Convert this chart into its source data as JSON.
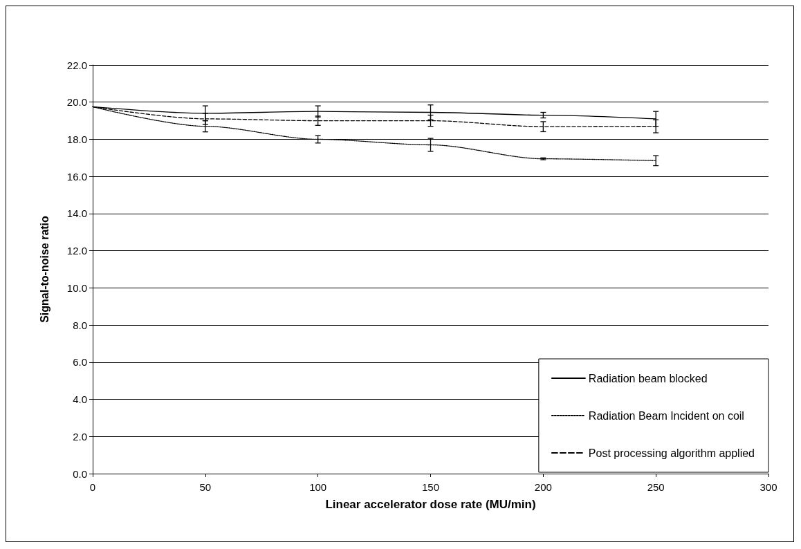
{
  "chart_data": {
    "type": "line",
    "xlabel": "Linear accelerator dose rate (MU/min)",
    "ylabel": "Signal-to-noise ratio",
    "x": [
      0,
      50,
      100,
      150,
      200,
      250
    ],
    "series": [
      {
        "name": "Radiation beam blocked",
        "color": "#000000",
        "line_style": "solid",
        "values": [
          19.75,
          19.4,
          19.5,
          19.45,
          19.3,
          19.1
        ],
        "errors": [
          null,
          0.4,
          0.3,
          0.4,
          0.15,
          0.4
        ]
      },
      {
        "name": "Radiation Beam Incident on coil",
        "color": "#000000",
        "line_style": "dotted",
        "values": [
          19.75,
          18.7,
          18.0,
          17.7,
          16.95,
          16.85
        ],
        "errors": [
          null,
          0.3,
          0.2,
          0.35,
          0.05,
          0.27
        ]
      },
      {
        "name": "Post processing algorithm applied",
        "color": "#000000",
        "line_style": "dashed",
        "values": [
          19.75,
          19.1,
          19.0,
          19.0,
          18.68,
          18.7
        ],
        "errors": [
          null,
          0.3,
          0.25,
          0.3,
          0.27,
          0.35
        ]
      }
    ],
    "xlim": [
      0,
      300
    ],
    "xticks": [
      0,
      50,
      100,
      150,
      200,
      250,
      300
    ],
    "ylim": [
      0,
      22
    ],
    "yticks": [
      {
        "value": 0,
        "label": "0.0"
      },
      {
        "value": 2,
        "label": "2.0"
      },
      {
        "value": 4,
        "label": "4.0"
      },
      {
        "value": 6,
        "label": "6.0"
      },
      {
        "value": 8,
        "label": "8.0"
      },
      {
        "value": 10,
        "label": "10.0"
      },
      {
        "value": 12,
        "label": "12.0"
      },
      {
        "value": 14,
        "label": "14.0"
      },
      {
        "value": 16,
        "label": "16.0"
      },
      {
        "value": 18,
        "label": "18.0"
      },
      {
        "value": 20,
        "label": "20.0"
      },
      {
        "value": 22,
        "label": "22.0"
      }
    ],
    "grid": "y",
    "legend": "bottom right",
    "marker": "none"
  }
}
